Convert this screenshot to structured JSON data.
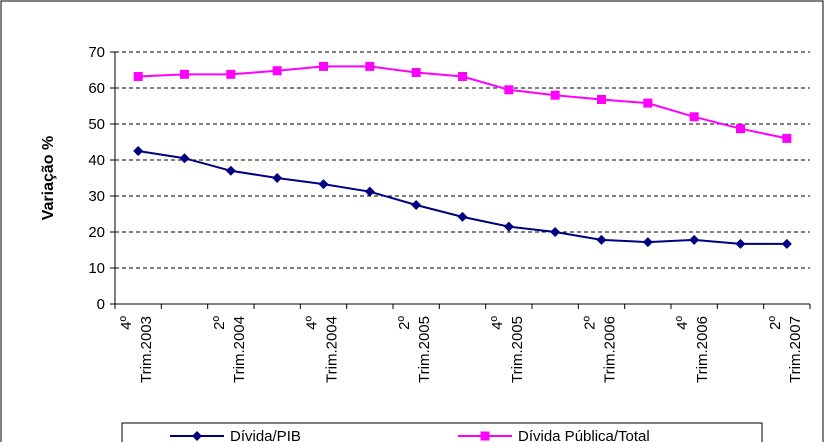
{
  "chart_data": {
    "type": "line",
    "ylabel": "Variação %",
    "ylim": [
      0,
      70
    ],
    "yticks": [
      0,
      10,
      20,
      30,
      40,
      50,
      60,
      70
    ],
    "grid": "horizontal-dashed",
    "legend_position": "bottom",
    "categories": [
      "4º Trim.2003",
      "",
      "2º Trim.2004",
      "",
      "4º Trim.2004",
      "",
      "2º Trim.2005",
      "",
      "4º Trim.2005",
      "",
      "2º Trim.2006",
      "",
      "4º Trim.2006",
      "",
      "2º Trim.2007"
    ],
    "x_tick_labels": [
      {
        "top": "4º",
        "bottom": "Trim.2003"
      },
      {
        "top": "2º",
        "bottom": "Trim.2004"
      },
      {
        "top": "4º",
        "bottom": "Trim.2004"
      },
      {
        "top": "2º",
        "bottom": "Trim.2005"
      },
      {
        "top": "4º",
        "bottom": "Trim.2005"
      },
      {
        "top": "2º",
        "bottom": "Trim.2006"
      },
      {
        "top": "4º",
        "bottom": "Trim.2006"
      },
      {
        "top": "2º",
        "bottom": "Trim.2007"
      }
    ],
    "series": [
      {
        "name": "Dívida/PIB",
        "color": "#000080",
        "marker": "diamond",
        "values": [
          42.5,
          40.5,
          37,
          35,
          33.3,
          31.2,
          27.5,
          24.2,
          21.5,
          20,
          17.8,
          17.2,
          17.8,
          16.7,
          16.7
        ]
      },
      {
        "name": "Dívida Pública/Total",
        "color": "#FF00FF",
        "marker": "square",
        "values": [
          63.2,
          63.8,
          63.8,
          64.8,
          66,
          66,
          64.3,
          63.2,
          59.5,
          58,
          56.8,
          55.8,
          52,
          48.7,
          46
        ]
      }
    ]
  }
}
